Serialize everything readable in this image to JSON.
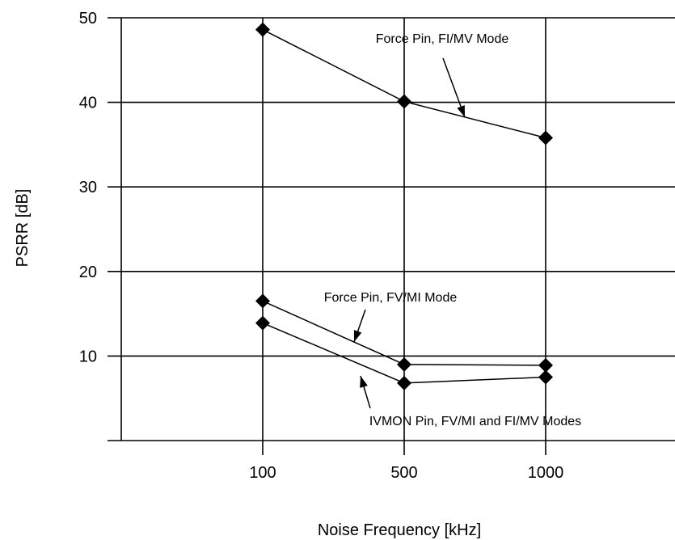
{
  "chart_data": {
    "type": "line",
    "title": "",
    "xlabel": "Noise Frequency [kHz]",
    "ylabel": "PSRR [dB]",
    "categories": [
      "100",
      "500",
      "1000"
    ],
    "ylim": [
      0,
      50
    ],
    "y_ticks": [
      "10",
      "20",
      "30",
      "40",
      "50"
    ],
    "grid": true,
    "series": [
      {
        "name": "Force Pin, FI/MV Mode",
        "values": [
          48.6,
          40.1,
          35.8
        ]
      },
      {
        "name": "Force Pin, FV/MI Mode",
        "values": [
          16.5,
          9.0,
          8.9
        ]
      },
      {
        "name": "IVMON Pin, FV/MI and FI/MV Modes",
        "values": [
          13.9,
          6.8,
          7.5
        ]
      }
    ]
  }
}
